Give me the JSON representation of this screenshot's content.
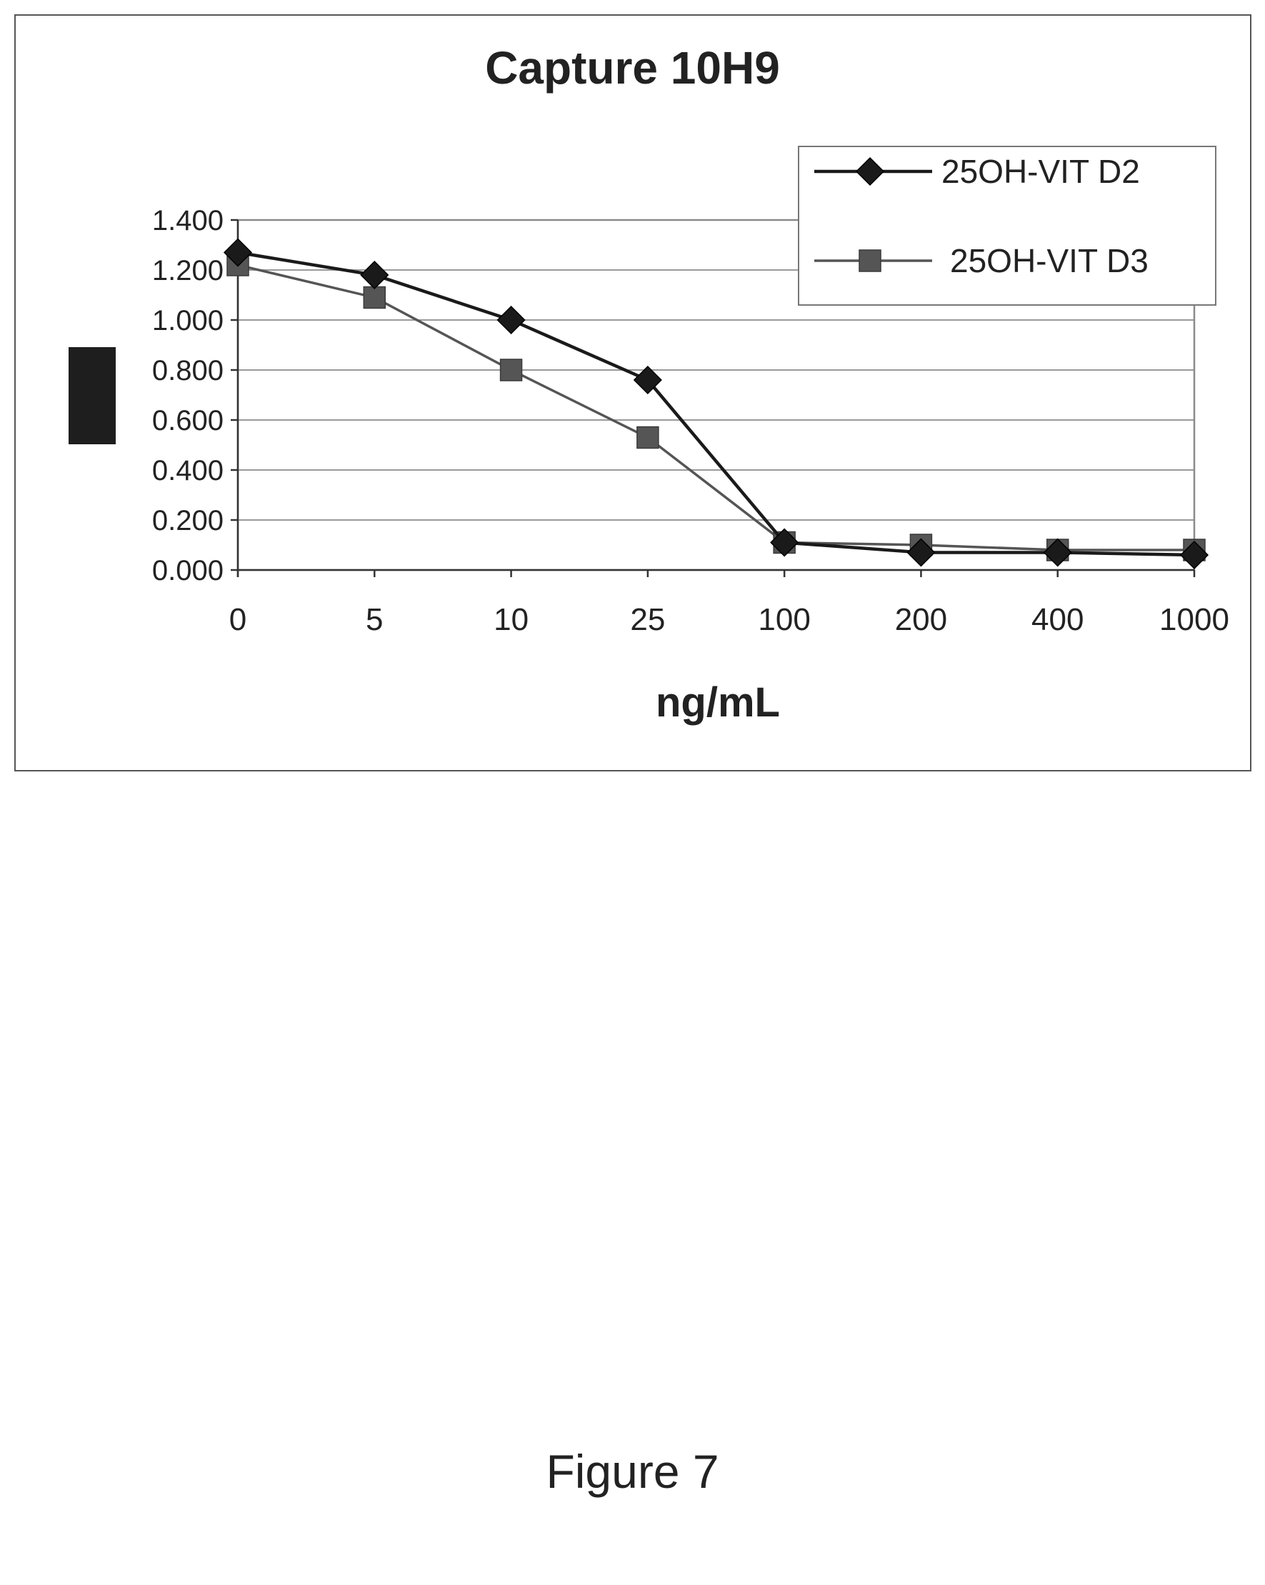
{
  "chart_data": {
    "type": "line",
    "title": "Capture 10H9",
    "xlabel": "ng/mL",
    "ylabel": "",
    "categories": [
      "0",
      "5",
      "10",
      "25",
      "100",
      "200",
      "400",
      "1000"
    ],
    "series": [
      {
        "name": "25OH-VIT D2",
        "marker": "diamond",
        "color": "#1a1a1a",
        "values": [
          1.27,
          1.18,
          1.0,
          0.76,
          0.11,
          0.07,
          0.07,
          0.06
        ]
      },
      {
        "name": "25OH-VIT D3",
        "marker": "square",
        "color": "#555555",
        "values": [
          1.22,
          1.09,
          0.8,
          0.53,
          0.11,
          0.1,
          0.08,
          0.08
        ]
      }
    ],
    "ylim": [
      0,
      1.4
    ],
    "yticks": [
      0.0,
      0.2,
      0.4,
      0.6,
      0.8,
      1.0,
      1.2,
      1.4
    ],
    "ytick_labels": [
      "0.000",
      "0.200",
      "0.400",
      "0.600",
      "0.800",
      "1.000",
      "1.200",
      "1.400"
    ],
    "grid": true,
    "legend_position": "top-right"
  },
  "caption": "Figure 7"
}
